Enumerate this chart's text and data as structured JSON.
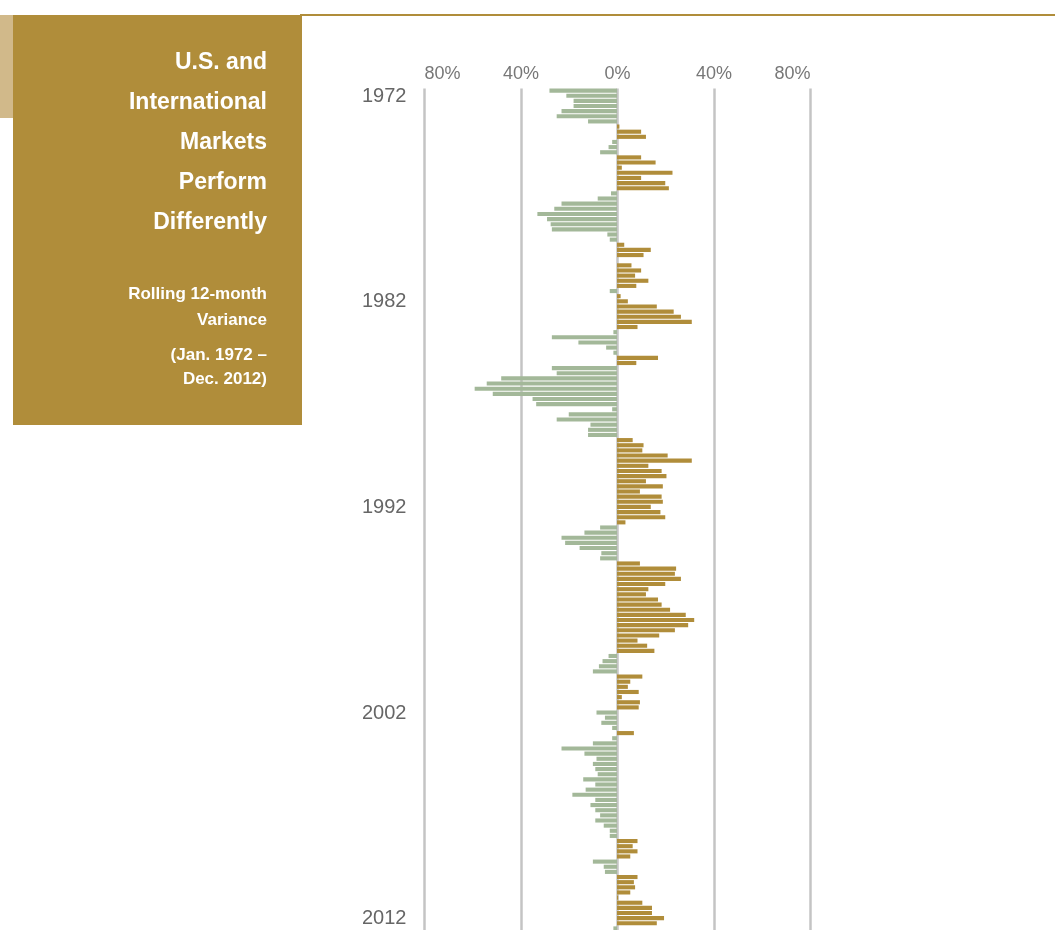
{
  "chart_data": {
    "type": "bar",
    "orientation": "horizontal",
    "title": "U.S. and International Markets Perform Differently",
    "subtitle": "Rolling 12-month Variance",
    "annotations": [
      "(Jan. 1972 – Dec. 2012)"
    ],
    "categories": [
      null,
      "1972",
      null,
      null,
      null,
      null,
      null,
      null,
      null,
      null,
      null,
      null,
      null,
      null,
      null,
      null,
      null,
      null,
      null,
      null,
      null,
      null,
      null,
      null,
      null,
      null,
      null,
      null,
      null,
      null,
      null,
      null,
      null,
      null,
      null,
      null,
      null,
      null,
      null,
      null,
      null,
      "1982",
      null,
      null,
      null,
      null,
      null,
      null,
      null,
      null,
      null,
      null,
      null,
      null,
      null,
      null,
      null,
      null,
      null,
      null,
      null,
      null,
      null,
      null,
      null,
      null,
      null,
      null,
      null,
      null,
      null,
      null,
      null,
      null,
      null,
      null,
      null,
      null,
      null,
      null,
      null,
      "1992",
      null,
      null,
      null,
      null,
      null,
      null,
      null,
      null,
      null,
      null,
      null,
      null,
      null,
      null,
      null,
      null,
      null,
      null,
      null,
      null,
      null,
      null,
      null,
      null,
      null,
      null,
      null,
      null,
      null,
      null,
      null,
      null,
      null,
      null,
      null,
      null,
      null,
      null,
      null,
      "2002",
      null,
      null,
      null,
      null,
      null,
      null,
      null,
      null,
      null,
      null,
      null,
      null,
      null,
      null,
      null,
      null,
      null,
      null,
      null,
      null,
      null,
      null,
      null,
      null,
      null,
      null,
      null,
      null,
      null,
      null,
      null,
      null,
      null,
      null,
      null,
      null,
      null,
      null,
      null,
      "2012",
      null,
      null
    ],
    "values": [
      -28,
      -21,
      -18,
      -18,
      -23,
      -25,
      -12,
      1,
      10,
      12,
      -2,
      -3.5,
      -7,
      10,
      16,
      2,
      23,
      10,
      20,
      21.5,
      -2.5,
      -8,
      -23,
      -26,
      -33,
      -29,
      -27.5,
      -27,
      -4,
      -3,
      3,
      14,
      11,
      0,
      6,
      10,
      7.5,
      13,
      8,
      -3,
      1.5,
      4.5,
      16.5,
      23.5,
      26.5,
      31,
      8.5,
      -1.5,
      -27,
      -16,
      -4.5,
      -1.5,
      17,
      8,
      -27,
      -25,
      -48,
      -54,
      -59,
      -51.5,
      -35,
      -33.5,
      -2,
      -20,
      -25,
      -11,
      -12,
      -12,
      6.5,
      11,
      10.5,
      21,
      31,
      13,
      18.5,
      20.5,
      12,
      19,
      9.5,
      18.5,
      19,
      14,
      18,
      20,
      3.5,
      -7,
      -13.5,
      -23,
      -21.5,
      -15.5,
      -6.5,
      -7,
      9.5,
      24.5,
      24,
      26.5,
      20,
      13,
      12,
      17,
      18.5,
      22,
      28.5,
      32,
      29.5,
      24,
      17.5,
      8.5,
      12.5,
      15.5,
      -3.5,
      -6,
      -7.5,
      -10,
      10.5,
      5.5,
      4.5,
      9,
      2,
      9.5,
      9,
      -8.5,
      -5,
      -6.5,
      -2,
      7,
      -2,
      -10,
      -23,
      -13.5,
      -8.5,
      -10,
      -9,
      -8,
      -14,
      -9,
      -13,
      -18.5,
      -9,
      -11,
      -9,
      -7,
      -9,
      -5.5,
      -3,
      -3,
      8.5,
      6.5,
      8.5,
      5.5,
      -10,
      -5.5,
      -5,
      8.5,
      7,
      7.5,
      5.5,
      0.5,
      10.5,
      14.5,
      14.5,
      19.5,
      16.5,
      -1.5
    ],
    "colors": [
      "#a3b899",
      "#a3b899",
      "#a3b899",
      "#a3b899",
      "#a3b899",
      "#a3b899",
      "#a3b899",
      "#b08d3a",
      "#b08d3a",
      "#b08d3a",
      "#a3b899",
      "#a3b899",
      "#a3b899",
      "#b08d3a",
      "#b08d3a",
      "#b08d3a",
      "#b08d3a",
      "#b08d3a",
      "#b08d3a",
      "#b08d3a",
      "#a3b899",
      "#a3b899",
      "#a3b899",
      "#a3b899",
      "#a3b899",
      "#a3b899",
      "#a3b899",
      "#a3b899",
      "#a3b899",
      "#a3b899",
      "#b08d3a",
      "#b08d3a",
      "#b08d3a",
      "#b08d3a",
      "#b08d3a",
      "#b08d3a",
      "#b08d3a",
      "#b08d3a",
      "#b08d3a",
      "#a3b899",
      "#b08d3a",
      "#b08d3a",
      "#b08d3a",
      "#b08d3a",
      "#b08d3a",
      "#b08d3a",
      "#b08d3a",
      "#a3b899",
      "#a3b899",
      "#a3b899",
      "#a3b899",
      "#a3b899",
      "#b08d3a",
      "#b08d3a",
      "#a3b899",
      "#a3b899",
      "#a3b899",
      "#a3b899",
      "#a3b899",
      "#a3b899",
      "#a3b899",
      "#a3b899",
      "#a3b899",
      "#a3b899",
      "#a3b899",
      "#a3b899",
      "#a3b899",
      "#a3b899",
      "#b08d3a",
      "#b08d3a",
      "#b08d3a",
      "#b08d3a",
      "#b08d3a",
      "#b08d3a",
      "#b08d3a",
      "#b08d3a",
      "#b08d3a",
      "#b08d3a",
      "#b08d3a",
      "#b08d3a",
      "#b08d3a",
      "#b08d3a",
      "#b08d3a",
      "#b08d3a",
      "#b08d3a",
      "#a3b899",
      "#a3b899",
      "#a3b899",
      "#a3b899",
      "#a3b899",
      "#a3b899",
      "#a3b899",
      "#b08d3a",
      "#b08d3a",
      "#b08d3a",
      "#b08d3a",
      "#b08d3a",
      "#b08d3a",
      "#b08d3a",
      "#b08d3a",
      "#b08d3a",
      "#b08d3a",
      "#b08d3a",
      "#b08d3a",
      "#b08d3a",
      "#b08d3a",
      "#b08d3a",
      "#b08d3a",
      "#b08d3a",
      "#b08d3a",
      "#a3b899",
      "#a3b899",
      "#a3b899",
      "#a3b899",
      "#b08d3a",
      "#b08d3a",
      "#b08d3a",
      "#b08d3a",
      "#b08d3a",
      "#b08d3a",
      "#b08d3a",
      "#a3b899",
      "#a3b899",
      "#a3b899",
      "#a3b899",
      "#b08d3a",
      "#a3b899",
      "#a3b899",
      "#a3b899",
      "#a3b899",
      "#a3b899",
      "#a3b899",
      "#a3b899",
      "#a3b899",
      "#a3b899",
      "#a3b899",
      "#a3b899",
      "#a3b899",
      "#a3b899",
      "#a3b899",
      "#a3b899",
      "#a3b899",
      "#a3b899",
      "#a3b899",
      "#a3b899",
      "#a3b899",
      "#b08d3a",
      "#b08d3a",
      "#b08d3a",
      "#b08d3a",
      "#a3b899",
      "#a3b899",
      "#a3b899",
      "#b08d3a",
      "#b08d3a",
      "#b08d3a",
      "#b08d3a",
      "#b08d3a",
      "#b08d3a",
      "#b08d3a",
      "#b08d3a",
      "#b08d3a",
      "#b08d3a",
      "#a3b899"
    ],
    "xlim": [
      -80,
      80
    ],
    "xticks": [
      {
        "value": -80,
        "label": "80%"
      },
      {
        "value": -40,
        "label": "40%"
      },
      {
        "value": 0,
        "label": "0%"
      },
      {
        "value": 40,
        "label": "40%"
      },
      {
        "value": 80,
        "label": "80%"
      }
    ],
    "grid": "x"
  }
}
